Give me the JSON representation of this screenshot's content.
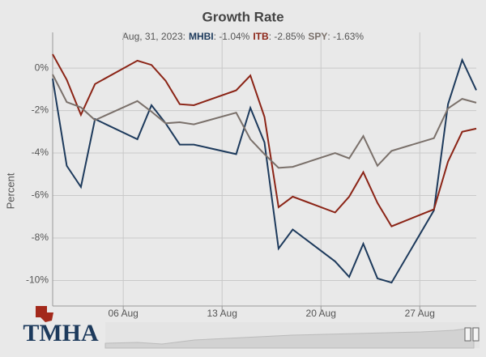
{
  "chart_data": {
    "type": "line",
    "title": "Growth Rate",
    "subtitle": "Aug, 31, 2023:",
    "separator": ": ",
    "y_label": "Percent",
    "logo": "TMHA",
    "x": [
      "01 Aug",
      "02 Aug",
      "03 Aug",
      "04 Aug",
      "07 Aug",
      "08 Aug",
      "09 Aug",
      "10 Aug",
      "11 Aug",
      "14 Aug",
      "15 Aug",
      "16 Aug",
      "17 Aug",
      "18 Aug",
      "21 Aug",
      "22 Aug",
      "23 Aug",
      "24 Aug",
      "25 Aug",
      "28 Aug",
      "29 Aug",
      "30 Aug",
      "31 Aug"
    ],
    "xlim": [
      "01 Aug",
      "31 Aug"
    ],
    "xticks": [
      "06 Aug",
      "13 Aug",
      "20 Aug",
      "27 Aug"
    ],
    "ylim": [
      -11.2,
      1.68
    ],
    "yticks": [
      {
        "value": 0,
        "label": "0%"
      },
      {
        "value": -2,
        "label": "-2%"
      },
      {
        "value": -4,
        "label": "-4%"
      },
      {
        "value": -6,
        "label": "-6%"
      },
      {
        "value": -8,
        "label": "-8%"
      },
      {
        "value": -10,
        "label": "-10%"
      }
    ],
    "grid": true,
    "series": [
      {
        "name": "MHBI",
        "color": "#1d3a5c",
        "latest_label": "-1.04%",
        "values": [
          -0.5,
          -4.6,
          -5.6,
          -2.4,
          -3.35,
          -1.75,
          -2.6,
          -3.6,
          -3.6,
          -4.05,
          -1.87,
          -3.5,
          -8.5,
          -7.6,
          -9.1,
          -9.83,
          -8.27,
          -9.9,
          -10.1,
          -6.7,
          -1.7,
          0.38,
          -1.04
        ]
      },
      {
        "name": "ITB",
        "color": "#8b2416",
        "latest_label": "-2.85%",
        "values": [
          0.65,
          -0.55,
          -2.2,
          -0.75,
          0.35,
          0.15,
          -0.6,
          -1.7,
          -1.75,
          -1.05,
          -0.35,
          -2.3,
          -6.55,
          -6.05,
          -6.8,
          -6.05,
          -4.9,
          -6.35,
          -7.45,
          -6.65,
          -4.4,
          -3.0,
          -2.85
        ]
      },
      {
        "name": "SPY",
        "color": "#7a706a",
        "latest_label": "-1.63%",
        "values": [
          -0.3,
          -1.6,
          -1.85,
          -2.45,
          -1.55,
          -2.05,
          -2.6,
          -2.55,
          -2.65,
          -2.1,
          -3.35,
          -4.05,
          -4.7,
          -4.65,
          -4.0,
          -4.25,
          -3.2,
          -4.6,
          -3.9,
          -3.3,
          -1.9,
          -1.45,
          -1.63
        ]
      }
    ]
  }
}
